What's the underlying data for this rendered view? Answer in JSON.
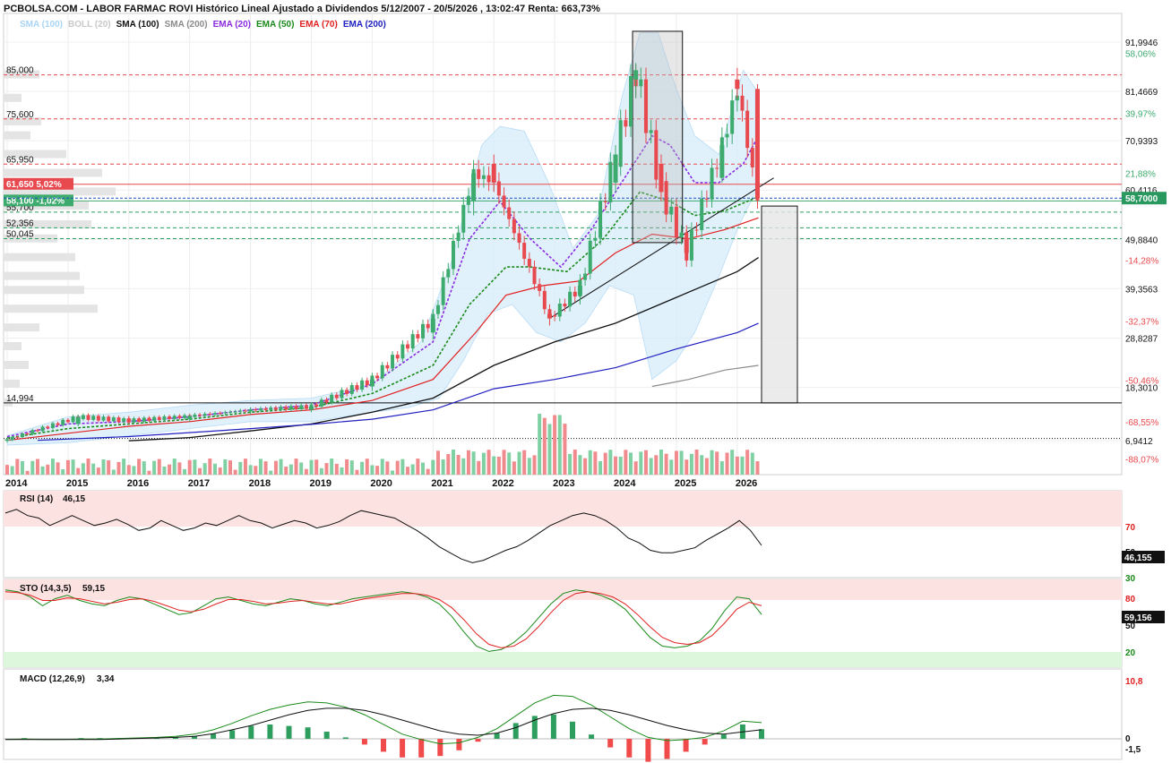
{
  "header": {
    "title": "PCBOLSA.COM - LABOR FARMAC ROVI Histórico Lineal Ajustado a Dividendos 5/12/2007 - 20/5/2026 , 13:02:47 Renta: 663,73%"
  },
  "legend": [
    {
      "label": "SMA (100)",
      "color": "#a8d4f5"
    },
    {
      "label": "BOLL (20)",
      "color": "#c8c8c8"
    },
    {
      "label": "SMA (100)",
      "color": "#111111"
    },
    {
      "label": "SMA (200)",
      "color": "#8a8a8a"
    },
    {
      "label": "EMA (20)",
      "color": "#8a2be2"
    },
    {
      "label": "EMA (50)",
      "color": "#1a8a1a"
    },
    {
      "label": "EMA (70)",
      "color": "#e02020"
    },
    {
      "label": "EMA (200)",
      "color": "#2020c0"
    }
  ],
  "colors": {
    "up": "#3daa6e",
    "down": "#e8494e",
    "bands": "#d6ecfb"
  },
  "chart_data": [
    {
      "type": "candlestick",
      "x_ticks": [
        "2014",
        "2015",
        "2016",
        "2017",
        "2018",
        "2019",
        "2020",
        "2021",
        "2022",
        "2023",
        "2024",
        "2025",
        "2026"
      ],
      "y_axis_labels": [
        "91,9946",
        "81,4669",
        "70,9393",
        "60,4116",
        "49,8840",
        "39,3563",
        "28,8287",
        "18,3010",
        "6,9412"
      ],
      "y_pct_labels": [
        "58,06%",
        "39,97%",
        "21,88%",
        "-14,28%",
        "-32,37%",
        "-50,46%",
        "-68,55%",
        "-88,07%"
      ],
      "levels": [
        {
          "label": "85,000",
          "value": 85.0
        },
        {
          "label": "75,600",
          "value": 75.6
        },
        {
          "label": "65,950",
          "value": 65.95
        },
        {
          "label": "55,700",
          "value": 55.7
        },
        {
          "label": "52,356",
          "value": 52.356
        },
        {
          "label": "50,045",
          "value": 50.045
        },
        {
          "label": "14,994",
          "value": 14.994
        }
      ],
      "badges": [
        {
          "label": "61,650",
          "pct": "5,02%",
          "value": 61.65,
          "color": "#e8494e"
        },
        {
          "label": "58,100",
          "pct": "-1,02%",
          "value": 58.1,
          "color": "#3daa6e"
        }
      ],
      "last_price": "58,7000",
      "ohlc_approx": [
        {
          "x": "2014-01",
          "o": 6.9,
          "h": 7.5,
          "l": 6.5,
          "c": 7.2
        },
        {
          "x": "2015-03",
          "o": 10.5,
          "h": 12.5,
          "l": 10.0,
          "c": 12.0
        },
        {
          "x": "2016-01",
          "o": 11.5,
          "h": 12.2,
          "l": 10.8,
          "c": 11.2
        },
        {
          "x": "2017-01",
          "o": 11.5,
          "h": 12.5,
          "l": 11.0,
          "c": 12.2
        },
        {
          "x": "2018-01",
          "o": 13.2,
          "h": 14.0,
          "l": 12.6,
          "c": 13.5
        },
        {
          "x": "2019-01",
          "o": 13.5,
          "h": 14.5,
          "l": 13.0,
          "c": 14.2
        },
        {
          "x": "2020-01",
          "o": 18.5,
          "h": 21.0,
          "l": 17.5,
          "c": 20.0
        },
        {
          "x": "2021-01",
          "o": 30.0,
          "h": 35.0,
          "l": 28.5,
          "c": 33.0
        },
        {
          "x": "2021-09",
          "o": 58.0,
          "h": 66.0,
          "l": 55.0,
          "c": 64.0
        },
        {
          "x": "2022-01",
          "o": 66.0,
          "h": 68.0,
          "l": 60.0,
          "c": 62.0
        },
        {
          "x": "2022-12",
          "o": 34.0,
          "h": 36.0,
          "l": 31.5,
          "c": 33.0
        },
        {
          "x": "2023-06",
          "o": 38.0,
          "h": 41.0,
          "l": 36.0,
          "c": 40.0
        },
        {
          "x": "2024-01",
          "o": 62.0,
          "h": 70.0,
          "l": 60.0,
          "c": 68.0
        },
        {
          "x": "2024-05",
          "o": 84.0,
          "h": 87.5,
          "l": 80.0,
          "c": 86.0
        },
        {
          "x": "2024-10",
          "o": 66.0,
          "h": 68.0,
          "l": 58.0,
          "c": 60.0
        },
        {
          "x": "2025-03",
          "o": 50.0,
          "h": 52.0,
          "l": 45.0,
          "c": 47.0
        },
        {
          "x": "2025-10",
          "o": 63.0,
          "h": 72.0,
          "l": 62.0,
          "c": 70.0
        },
        {
          "x": "2026-01",
          "o": 84.0,
          "h": 86.5,
          "l": 80.0,
          "c": 82.0
        },
        {
          "x": "2026-05",
          "o": 82.0,
          "h": 83.0,
          "l": 57.5,
          "c": 58.7
        }
      ]
    },
    {
      "type": "line",
      "title": "RSI (14)",
      "value_label": "46,15",
      "last": "46,155",
      "y_labels": [
        "70",
        "50",
        "30"
      ],
      "values": [
        72,
        75,
        70,
        68,
        62,
        66,
        70,
        66,
        62,
        64,
        67,
        63,
        58,
        60,
        66,
        62,
        58,
        60,
        64,
        62,
        66,
        70,
        66,
        64,
        60,
        63,
        66,
        64,
        60,
        62,
        65,
        70,
        74,
        72,
        70,
        68,
        63,
        58,
        52,
        45,
        40,
        35,
        32,
        34,
        38,
        42,
        45,
        50,
        56,
        62,
        66,
        70,
        72,
        70,
        66,
        60,
        52,
        48,
        42,
        40,
        40,
        42,
        44,
        50,
        55,
        60,
        66,
        58,
        46
      ]
    },
    {
      "type": "line",
      "title": "STO (14,3,5)",
      "value_label": "59,15",
      "last": "59,156",
      "y_labels": [
        "80",
        "50",
        "20"
      ],
      "series": [
        {
          "values": [
            88,
            86,
            80,
            70,
            78,
            82,
            76,
            72,
            70,
            76,
            80,
            78,
            72,
            66,
            60,
            62,
            70,
            78,
            80,
            76,
            72,
            70,
            74,
            78,
            76,
            72,
            70,
            74,
            78,
            80,
            82,
            84,
            86,
            84,
            80,
            72,
            58,
            40,
            24,
            18,
            20,
            28,
            40,
            56,
            72,
            84,
            88,
            86,
            82,
            76,
            66,
            50,
            34,
            24,
            22,
            24,
            30,
            44,
            64,
            80,
            78,
            60
          ]
        },
        {
          "values": [
            86,
            85,
            82,
            76,
            76,
            79,
            78,
            75,
            72,
            74,
            77,
            78,
            75,
            70,
            65,
            63,
            66,
            72,
            77,
            77,
            75,
            72,
            73,
            75,
            76,
            74,
            72,
            72,
            75,
            78,
            80,
            82,
            84,
            84,
            82,
            77,
            68,
            54,
            38,
            26,
            22,
            24,
            32,
            46,
            62,
            76,
            84,
            86,
            84,
            80,
            72,
            60,
            46,
            34,
            28,
            26,
            28,
            36,
            50,
            66,
            74,
            70
          ]
        }
      ]
    },
    {
      "type": "line",
      "title": "MACD (12,26,9)",
      "value_label": "3,34",
      "y_labels": [
        "10,8",
        "0",
        "-1,5"
      ],
      "series": [
        {
          "values": [
            0.2,
            0.3,
            0.2,
            0.2,
            0.3,
            0.3,
            0.4,
            0.5,
            0.6,
            0.8,
            1.2,
            2.0,
            3.2,
            4.6,
            5.8,
            6.6,
            7.2,
            7.0,
            6.2,
            4.8,
            3.0,
            1.2,
            0.2,
            -0.6,
            -0.4,
            0.6,
            2.2,
            4.6,
            7.0,
            8.4,
            8.2,
            6.6,
            4.4,
            2.2,
            0.6,
            0.0,
            0.2,
            0.6,
            1.8,
            3.6,
            3.34
          ]
        },
        {
          "values": [
            0.2,
            0.2,
            0.2,
            0.2,
            0.2,
            0.2,
            0.3,
            0.4,
            0.5,
            0.6,
            0.8,
            1.3,
            2.0,
            2.8,
            3.8,
            4.8,
            5.6,
            6.0,
            6.0,
            5.6,
            4.8,
            3.8,
            2.8,
            1.8,
            1.2,
            1.0,
            1.4,
            2.4,
            3.8,
            5.0,
            5.8,
            6.0,
            5.6,
            4.8,
            3.8,
            2.8,
            2.0,
            1.4,
            1.2,
            1.6,
            2.0
          ]
        }
      ]
    }
  ]
}
